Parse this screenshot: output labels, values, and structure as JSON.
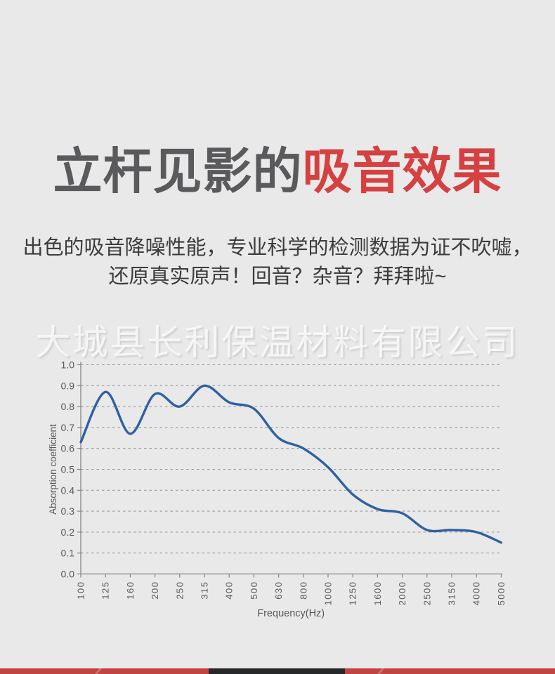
{
  "page": {
    "background_color": "#e9e9e9",
    "watermark_text": "大城县长利保温材料有限公司"
  },
  "header": {
    "title_segments": [
      {
        "text": "立杆见影的",
        "color": "#5a5a5c"
      },
      {
        "text": "吸音效果",
        "color": "#d54040"
      }
    ],
    "subtitle_lines": [
      "出色的吸音降噪性能，专业科学的检测数据为证不吹嘘，",
      "还原真实原声！回音？杂音？拜拜啦~"
    ]
  },
  "chart_data": {
    "type": "line",
    "title": "",
    "xlabel": "Frequency(Hz)",
    "ylabel": "Absorption coefficient",
    "categories": [
      "100",
      "125",
      "160",
      "200",
      "250",
      "315",
      "400",
      "500",
      "630",
      "800",
      "1000",
      "1250",
      "1600",
      "2000",
      "2500",
      "3150",
      "4000",
      "5000"
    ],
    "series": [
      {
        "name": "Absorption coefficient",
        "values": [
          0.63,
          0.87,
          0.67,
          0.86,
          0.8,
          0.9,
          0.82,
          0.79,
          0.65,
          0.6,
          0.51,
          0.38,
          0.31,
          0.29,
          0.21,
          0.21,
          0.2,
          0.15
        ]
      }
    ],
    "ylim": [
      0.0,
      1.0
    ],
    "ytick_step": 0.1,
    "x_spacing": "equal (third-octave frequency bands)",
    "grid": "horizontal dashed gridlines",
    "legend": "none",
    "smooth": true,
    "line_color": "#30619f",
    "axis_color": "#858585",
    "gridline_color": "#9b9b9b",
    "tick_label_color": "#595959"
  },
  "footer": {
    "bar_color": "#c24442",
    "bar_dark_color": "#26282a"
  }
}
